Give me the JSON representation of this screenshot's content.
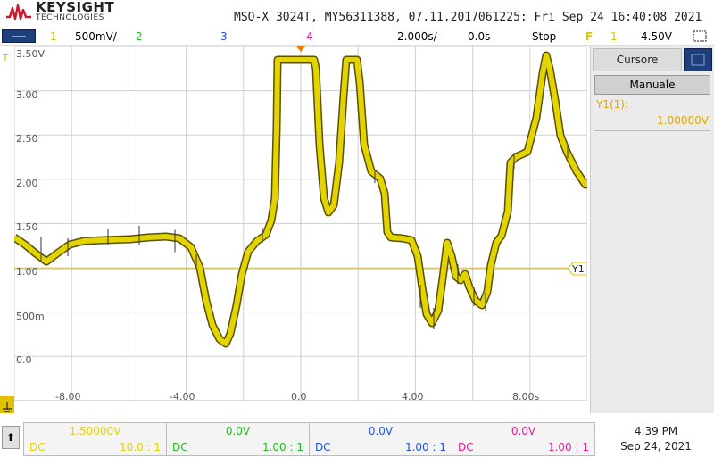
{
  "header": {
    "brand": "KEYSIGHT",
    "brand_sub": "TECHNOLOGIES",
    "device_info": "MSO-X 3024T, MY56311388, 07.11.2017061225: Fri Sep 24 16:40:08 2021"
  },
  "channel_bar": {
    "ch1": "1",
    "ch1_scale": "500mV/",
    "ch2": "2",
    "ch3": "3",
    "ch4": "4",
    "timebase": "2.000s/",
    "delay": "0.0s",
    "run_state": "Stop",
    "trigger_icon": "F",
    "trigger_ch": "1",
    "trigger_level": "4.50V"
  },
  "plot": {
    "y_labels": [
      "3.50V",
      "3.00",
      "2.50",
      "2.00",
      "1.50",
      "1.00",
      "500m",
      "0.0"
    ],
    "x_labels": [
      "-8.00",
      "-4.00",
      "0.0",
      "4.00",
      "8.00s"
    ],
    "cursor_label": "Y1",
    "colors": {
      "trace": "#e3d400",
      "trace_edge": "#5a5000",
      "grid": "#d0d0d0",
      "cursor": "#e3c400"
    }
  },
  "side_panel": {
    "tab_label": "Cursore",
    "mode_button": "Manuale",
    "y1_label": "Y1(1):",
    "y1_value": "1.00000V"
  },
  "footer": {
    "channels": [
      {
        "value": "1.50000V",
        "coupling": "DC",
        "probe": "10.0 : 1",
        "color": "#e3d400"
      },
      {
        "value": "0.0V",
        "coupling": "DC",
        "probe": "1.00 : 1",
        "color": "#22bb22"
      },
      {
        "value": "0.0V",
        "coupling": "DC",
        "probe": "1.00 : 1",
        "color": "#2255dd"
      },
      {
        "value": "0.0V",
        "coupling": "DC",
        "probe": "1.00 : 1",
        "color": "#dd2299"
      }
    ],
    "time": "4:39 PM",
    "date": "Sep 24, 2021"
  }
}
